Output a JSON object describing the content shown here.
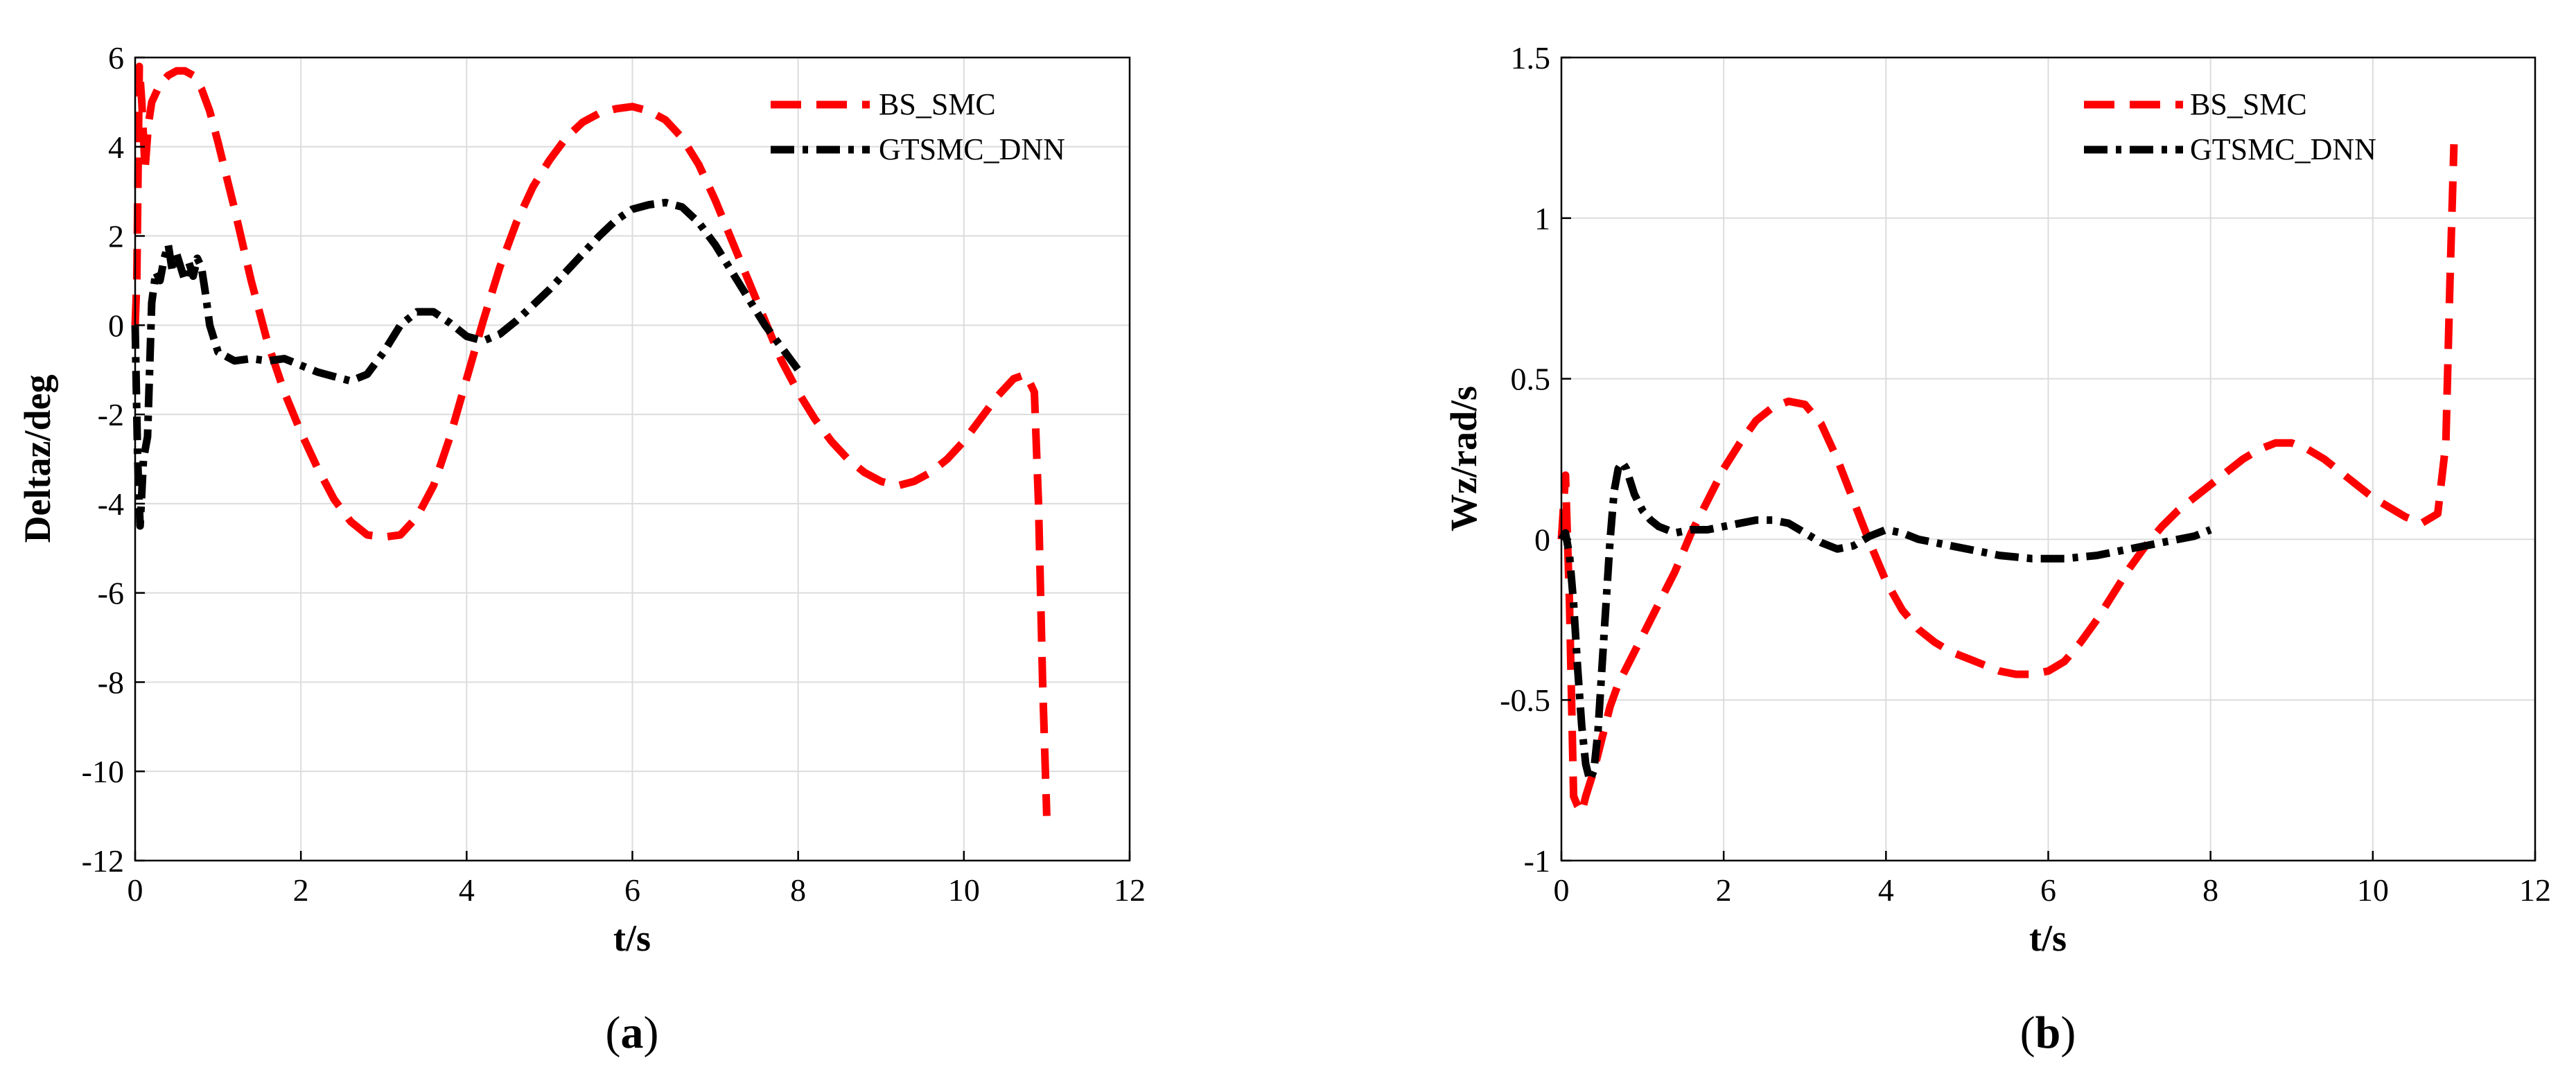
{
  "chart_data": [
    {
      "type": "line",
      "panel": "a",
      "caption": {
        "open": "(",
        "letter": "a",
        "close": ")"
      },
      "xlabel": "t/s",
      "ylabel": "Deltaz/deg",
      "xlim": [
        0,
        12
      ],
      "ylim": [
        -12,
        6
      ],
      "xticks": [
        0,
        2,
        4,
        6,
        8,
        10,
        12
      ],
      "yticks": [
        -12,
        -10,
        -8,
        -6,
        -4,
        -2,
        0,
        2,
        4,
        6
      ],
      "grid": true,
      "legend_position": "top-right",
      "series": [
        {
          "name": "BS_SMC",
          "color": "#ff0000",
          "style": "dashed",
          "x": [
            0,
            0.02,
            0.05,
            0.08,
            0.12,
            0.16,
            0.2,
            0.3,
            0.4,
            0.5,
            0.6,
            0.7,
            0.8,
            0.9,
            1.0,
            1.2,
            1.4,
            1.6,
            1.8,
            2.0,
            2.2,
            2.4,
            2.6,
            2.8,
            3.0,
            3.2,
            3.4,
            3.6,
            3.8,
            4.0,
            4.2,
            4.4,
            4.6,
            4.8,
            5.0,
            5.2,
            5.4,
            5.6,
            5.8,
            6.0,
            6.2,
            6.4,
            6.6,
            6.8,
            7.0,
            7.2,
            7.4,
            7.6,
            7.8,
            8.0,
            8.2,
            8.4,
            8.6,
            8.8,
            9.0,
            9.2,
            9.4,
            9.6,
            9.8,
            10.0,
            10.2,
            10.4,
            10.6,
            10.75,
            10.85,
            10.9,
            10.95,
            11.0
          ],
          "y": [
            0,
            1.0,
            5.8,
            5.0,
            3.5,
            4.5,
            5.0,
            5.4,
            5.6,
            5.7,
            5.7,
            5.6,
            5.3,
            4.8,
            4.1,
            2.6,
            1.0,
            -0.4,
            -1.5,
            -2.4,
            -3.2,
            -3.9,
            -4.4,
            -4.7,
            -4.75,
            -4.7,
            -4.3,
            -3.6,
            -2.5,
            -1.2,
            0.1,
            1.3,
            2.3,
            3.1,
            3.7,
            4.2,
            4.55,
            4.75,
            4.85,
            4.9,
            4.8,
            4.6,
            4.2,
            3.6,
            2.8,
            1.9,
            1.0,
            0.1,
            -0.8,
            -1.5,
            -2.1,
            -2.6,
            -3.0,
            -3.3,
            -3.5,
            -3.6,
            -3.5,
            -3.3,
            -3.0,
            -2.6,
            -2.1,
            -1.6,
            -1.2,
            -1.1,
            -1.5,
            -4.0,
            -8.0,
            -11.0
          ]
        },
        {
          "name": "GTSMC_DNN",
          "color": "#000000",
          "style": "dashdot",
          "x": [
            0,
            0.03,
            0.06,
            0.1,
            0.15,
            0.2,
            0.25,
            0.3,
            0.35,
            0.4,
            0.45,
            0.5,
            0.55,
            0.6,
            0.65,
            0.7,
            0.75,
            0.8,
            0.85,
            0.9,
            1.0,
            1.2,
            1.4,
            1.6,
            1.8,
            2.0,
            2.2,
            2.4,
            2.6,
            2.8,
            3.0,
            3.2,
            3.4,
            3.6,
            3.8,
            4.0,
            4.2,
            4.4,
            4.6,
            4.8,
            5.0,
            5.2,
            5.4,
            5.6,
            5.8,
            6.0,
            6.2,
            6.4,
            6.6,
            6.8,
            7.0,
            7.2,
            7.4,
            7.6,
            7.8,
            8.0
          ],
          "y": [
            0,
            -3.0,
            -4.5,
            -3.0,
            -2.5,
            0.5,
            1.2,
            1.0,
            1.5,
            1.8,
            1.2,
            1.6,
            1.3,
            1.0,
            1.4,
            1.1,
            1.5,
            1.3,
            0.7,
            0.0,
            -0.6,
            -0.8,
            -0.75,
            -0.8,
            -0.75,
            -0.9,
            -1.05,
            -1.15,
            -1.25,
            -1.1,
            -0.6,
            0.0,
            0.3,
            0.3,
            0.05,
            -0.25,
            -0.35,
            -0.2,
            0.1,
            0.45,
            0.8,
            1.2,
            1.6,
            2.0,
            2.35,
            2.6,
            2.7,
            2.75,
            2.65,
            2.3,
            1.8,
            1.2,
            0.6,
            0.0,
            -0.5,
            -1.0
          ]
        }
      ]
    },
    {
      "type": "line",
      "panel": "b",
      "caption": {
        "open": "(",
        "letter": "b",
        "close": ")"
      },
      "xlabel": "t/s",
      "ylabel": "Wz/rad/s",
      "xlim": [
        0,
        12
      ],
      "ylim": [
        -1,
        1.5
      ],
      "xticks": [
        0,
        2,
        4,
        6,
        8,
        10,
        12
      ],
      "yticks": [
        -1,
        -0.5,
        0,
        0.5,
        1,
        1.5
      ],
      "grid": true,
      "legend_position": "top-right",
      "series": [
        {
          "name": "BS_SMC",
          "color": "#ff0000",
          "style": "dashed",
          "x": [
            0,
            0.05,
            0.1,
            0.15,
            0.2,
            0.25,
            0.3,
            0.4,
            0.5,
            0.6,
            0.7,
            0.8,
            0.9,
            1.0,
            1.2,
            1.4,
            1.6,
            1.8,
            2.0,
            2.2,
            2.4,
            2.6,
            2.8,
            3.0,
            3.2,
            3.4,
            3.6,
            3.8,
            4.0,
            4.2,
            4.4,
            4.6,
            4.8,
            5.0,
            5.2,
            5.4,
            5.6,
            5.8,
            6.0,
            6.2,
            6.4,
            6.6,
            6.8,
            7.0,
            7.2,
            7.4,
            7.6,
            7.8,
            8.0,
            8.2,
            8.4,
            8.6,
            8.8,
            9.0,
            9.2,
            9.4,
            9.6,
            9.8,
            10.0,
            10.2,
            10.4,
            10.6,
            10.8,
            10.9,
            10.95,
            11.0
          ],
          "y": [
            0,
            0.2,
            -0.2,
            -0.8,
            -0.83,
            -0.85,
            -0.8,
            -0.72,
            -0.62,
            -0.52,
            -0.45,
            -0.4,
            -0.35,
            -0.3,
            -0.2,
            -0.1,
            0.02,
            0.12,
            0.22,
            0.3,
            0.37,
            0.41,
            0.43,
            0.42,
            0.36,
            0.25,
            0.12,
            -0.01,
            -0.13,
            -0.22,
            -0.28,
            -0.32,
            -0.35,
            -0.37,
            -0.39,
            -0.41,
            -0.42,
            -0.42,
            -0.41,
            -0.38,
            -0.32,
            -0.25,
            -0.17,
            -0.09,
            -0.02,
            0.04,
            0.09,
            0.13,
            0.17,
            0.21,
            0.25,
            0.28,
            0.3,
            0.3,
            0.28,
            0.25,
            0.21,
            0.17,
            0.13,
            0.1,
            0.07,
            0.05,
            0.08,
            0.3,
            0.8,
            1.23
          ]
        },
        {
          "name": "GTSMC_DNN",
          "color": "#000000",
          "style": "dashdot",
          "x": [
            0,
            0.05,
            0.1,
            0.15,
            0.2,
            0.25,
            0.3,
            0.35,
            0.4,
            0.45,
            0.5,
            0.55,
            0.6,
            0.65,
            0.7,
            0.75,
            0.8,
            0.85,
            0.9,
            1.0,
            1.1,
            1.2,
            1.4,
            1.6,
            1.8,
            2.0,
            2.2,
            2.4,
            2.6,
            2.8,
            3.0,
            3.2,
            3.4,
            3.6,
            3.8,
            4.0,
            4.2,
            4.4,
            4.6,
            4.8,
            5.0,
            5.2,
            5.4,
            5.6,
            5.8,
            6.0,
            6.2,
            6.4,
            6.6,
            6.8,
            7.0,
            7.2,
            7.4,
            7.6,
            7.8,
            8.0
          ],
          "y": [
            0,
            0.02,
            -0.05,
            -0.2,
            -0.4,
            -0.58,
            -0.7,
            -0.75,
            -0.72,
            -0.6,
            -0.4,
            -0.2,
            0.0,
            0.15,
            0.22,
            0.24,
            0.22,
            0.18,
            0.14,
            0.09,
            0.06,
            0.04,
            0.02,
            0.03,
            0.03,
            0.04,
            0.05,
            0.06,
            0.06,
            0.05,
            0.02,
            -0.01,
            -0.03,
            -0.02,
            0.01,
            0.03,
            0.02,
            0.0,
            -0.01,
            -0.02,
            -0.03,
            -0.04,
            -0.05,
            -0.055,
            -0.06,
            -0.06,
            -0.06,
            -0.055,
            -0.05,
            -0.04,
            -0.03,
            -0.02,
            -0.01,
            0.0,
            0.01,
            0.03
          ]
        }
      ]
    }
  ]
}
